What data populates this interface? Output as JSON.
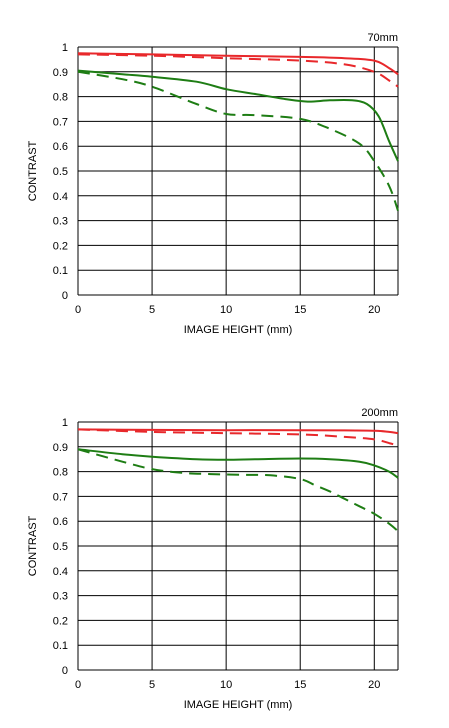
{
  "colors": {
    "sagittal_red": "#e8282b",
    "meridional_red": "#e8282b",
    "sagittal_green": "#1e7d14",
    "meridional_green": "#1e7d14",
    "grid": "#000000"
  },
  "chart_data": [
    {
      "type": "line",
      "corner_label": "70mm",
      "xlabel": "IMAGE HEIGHT (mm)",
      "ylabel": "CONTRAST",
      "xlim": [
        0,
        21.6
      ],
      "ylim": [
        0,
        1
      ],
      "xticks": [
        0,
        5,
        10,
        15,
        20
      ],
      "xtick_labels": [
        "0",
        "5",
        "10",
        "15",
        "20"
      ],
      "yticks": [
        0,
        0.1,
        0.2,
        0.3,
        0.4,
        0.5,
        0.6,
        0.7,
        0.8,
        0.9,
        1
      ],
      "ytick_labels": [
        "0",
        "0.1",
        "0.2",
        "0.3",
        "0.4",
        "0.5",
        "0.6",
        "0.7",
        "0.8",
        "0.9",
        "1"
      ],
      "grid": true,
      "series": [
        {
          "color": "red",
          "style": "solid",
          "x": [
            0,
            5,
            10,
            15,
            18,
            20,
            21,
            21.6
          ],
          "y": [
            0.975,
            0.97,
            0.965,
            0.96,
            0.955,
            0.945,
            0.915,
            0.89
          ]
        },
        {
          "color": "red",
          "style": "dashed",
          "x": [
            0,
            5,
            10,
            15,
            18,
            20,
            21,
            21.6
          ],
          "y": [
            0.97,
            0.965,
            0.955,
            0.945,
            0.93,
            0.9,
            0.865,
            0.84
          ]
        },
        {
          "color": "green",
          "style": "solid",
          "x": [
            0,
            3,
            5,
            8,
            10,
            12,
            14,
            15.5,
            17,
            18.5,
            19.5,
            20.3,
            21,
            21.6
          ],
          "y": [
            0.905,
            0.89,
            0.88,
            0.86,
            0.83,
            0.81,
            0.79,
            0.78,
            0.785,
            0.785,
            0.77,
            0.72,
            0.62,
            0.54
          ]
        },
        {
          "color": "green",
          "style": "dashed",
          "x": [
            0,
            3,
            5,
            8,
            10,
            12,
            15,
            17,
            19,
            20,
            21,
            21.6
          ],
          "y": [
            0.9,
            0.87,
            0.84,
            0.77,
            0.73,
            0.725,
            0.71,
            0.67,
            0.61,
            0.54,
            0.44,
            0.34
          ]
        }
      ]
    },
    {
      "type": "line",
      "corner_label": "200mm",
      "xlabel": "IMAGE HEIGHT (mm)",
      "ylabel": "CONTRAST",
      "xlim": [
        0,
        21.6
      ],
      "ylim": [
        0,
        1
      ],
      "xticks": [
        0,
        5,
        10,
        15,
        20
      ],
      "xtick_labels": [
        "0",
        "5",
        "10",
        "15",
        "20"
      ],
      "yticks": [
        0,
        0.1,
        0.2,
        0.3,
        0.4,
        0.5,
        0.6,
        0.7,
        0.8,
        0.9,
        1
      ],
      "ytick_labels": [
        "0",
        "0.1",
        "0.2",
        "0.3",
        "0.4",
        "0.5",
        "0.6",
        "0.7",
        "0.8",
        "0.9",
        "1"
      ],
      "grid": true,
      "series": [
        {
          "color": "red",
          "style": "solid",
          "x": [
            0,
            5,
            10,
            15,
            18,
            20,
            21,
            21.6
          ],
          "y": [
            0.97,
            0.968,
            0.967,
            0.967,
            0.966,
            0.965,
            0.96,
            0.955
          ]
        },
        {
          "color": "red",
          "style": "dashed",
          "x": [
            0,
            5,
            10,
            15,
            18,
            20,
            21,
            21.6
          ],
          "y": [
            0.97,
            0.96,
            0.955,
            0.95,
            0.94,
            0.93,
            0.915,
            0.905
          ]
        },
        {
          "color": "green",
          "style": "solid",
          "x": [
            0,
            3,
            5,
            8,
            10,
            12,
            15,
            17,
            19,
            20,
            21,
            21.6
          ],
          "y": [
            0.89,
            0.87,
            0.86,
            0.85,
            0.848,
            0.85,
            0.853,
            0.85,
            0.84,
            0.825,
            0.8,
            0.775
          ]
        },
        {
          "color": "green",
          "style": "dashed",
          "x": [
            0,
            3,
            5,
            7,
            9,
            11,
            13,
            15,
            16,
            17,
            18,
            19,
            20,
            21,
            21.6
          ],
          "y": [
            0.89,
            0.84,
            0.81,
            0.795,
            0.79,
            0.787,
            0.785,
            0.77,
            0.745,
            0.72,
            0.69,
            0.66,
            0.63,
            0.59,
            0.56
          ]
        }
      ]
    }
  ]
}
